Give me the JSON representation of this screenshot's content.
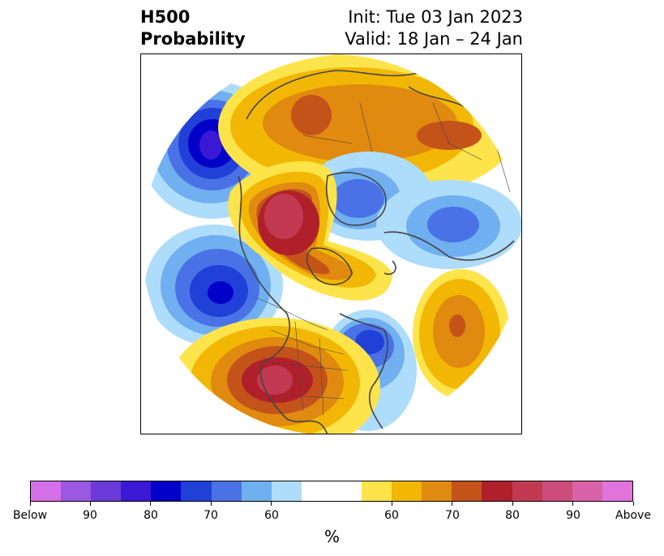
{
  "title": {
    "left_line1": "H500",
    "left_line2": "Probability",
    "right_line1": "Init: Tue 03 Jan 2023",
    "right_line2": "Valid: 18 Jan – 24 Jan"
  },
  "colorbar": {
    "units": "%",
    "colors": [
      "#d46fe8",
      "#9b58e0",
      "#6b3ad8",
      "#3a18d4",
      "#0000c8",
      "#2040d8",
      "#4a72e6",
      "#70aff0",
      "#aedcfb",
      "#ffffff",
      "#ffffff",
      "#fde44a",
      "#f2b705",
      "#e08a10",
      "#c4531a",
      "#b0202a",
      "#c23a52",
      "#cc4d7a",
      "#d861a8",
      "#e273dd"
    ],
    "tick_labels": [
      "Below",
      "90",
      "80",
      "70",
      "60",
      "60",
      "70",
      "80",
      "90",
      "Above"
    ]
  },
  "map": {
    "projection": "polar stereographic (North Pole)",
    "land_outline_color": "#444444"
  }
}
